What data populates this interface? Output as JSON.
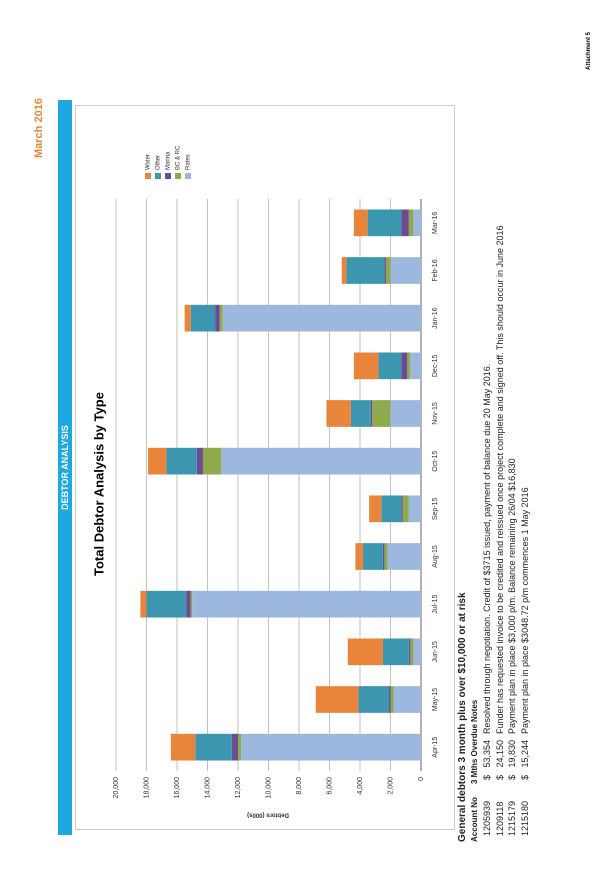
{
  "header": {
    "date": "March 2016",
    "section": "DEBTOR ANALYSIS",
    "attachment": "Attachment 5"
  },
  "chart_data": {
    "type": "stacked_bar",
    "title": "Total Debtor Analysis by Type",
    "y_label": "Debtors (000s)",
    "categories": [
      "Apr-15",
      "May-15",
      "Jun-15",
      "Jul-15",
      "Aug-15",
      "Sep-15",
      "Oct-15",
      "Nov-15",
      "Dec-15",
      "Jan-16",
      "Feb-16",
      "Mar-16"
    ],
    "series": [
      {
        "name": "Rates",
        "color": "#9db8de",
        "values": [
          11800,
          1800,
          500,
          15000,
          2200,
          800,
          13100,
          2000,
          700,
          13000,
          2000,
          500
        ]
      },
      {
        "name": "BC & RC",
        "color": "#8faa4b",
        "values": [
          200,
          200,
          200,
          100,
          200,
          400,
          1200,
          1200,
          200,
          200,
          300,
          300
        ]
      },
      {
        "name": "Marina",
        "color": "#6a4c93",
        "values": [
          400,
          100,
          100,
          300,
          100,
          100,
          400,
          100,
          400,
          300,
          100,
          500
        ]
      },
      {
        "name": "Other",
        "color": "#3d96b0",
        "values": [
          2400,
          2000,
          1700,
          2600,
          1300,
          1300,
          2000,
          1300,
          1500,
          1600,
          2500,
          2200
        ]
      },
      {
        "name": "Water",
        "color": "#e8853a",
        "values": [
          1600,
          2800,
          2300,
          400,
          500,
          800,
          1200,
          1600,
          1600,
          400,
          300,
          900
        ]
      }
    ],
    "ylim": [
      0,
      20000
    ],
    "yticks": [
      0,
      {
        "value": 2000,
        "label": "2,000"
      },
      {
        "value": 4000,
        "label": "4,000"
      },
      {
        "value": 6000,
        "label": "6,000"
      },
      {
        "value": 8000,
        "label": "8,000"
      },
      {
        "value": 10000,
        "label": "10,000"
      },
      {
        "value": 12000,
        "label": "12,000"
      },
      {
        "value": 14000,
        "label": "14,000"
      },
      {
        "value": 16000,
        "label": "16,000"
      },
      {
        "value": 18000,
        "label": "18,000"
      },
      {
        "value": 20000,
        "label": "20,000"
      }
    ],
    "grid": true,
    "legend": "right"
  },
  "table": {
    "title": "General debtors 3 month plus over $10,000 or at risk",
    "columns": [
      "Account No",
      "3 Mths Overdue",
      "Notes"
    ],
    "rows": [
      [
        "1205939",
        "$",
        "53,354",
        "Resolved through negotiation. Credit of $3715 issued, payment of balance due 20 May 2016."
      ],
      [
        "1209118",
        "$",
        "24,150",
        "Funder has requested invoice to be credited and reissued once project complete and signed off. This should occur in June 2016"
      ],
      [
        "1215179",
        "$",
        "19,830",
        "Payment plan in place $3,000 p/m. Balance remaining 26/04 $16,830"
      ],
      [
        "1215180",
        "$",
        "15,244",
        "Payment plan in place $3048.72 p/m commences 1 May 2016"
      ]
    ]
  }
}
